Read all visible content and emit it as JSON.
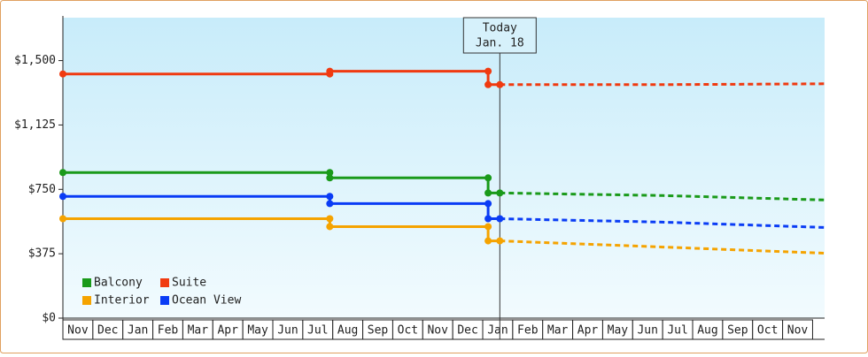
{
  "chart_data": {
    "type": "line",
    "categories": [
      "Nov",
      "Dec",
      "Jan",
      "Feb",
      "Mar",
      "Apr",
      "May",
      "Jun",
      "Jul",
      "Aug",
      "Sep",
      "Oct",
      "Nov",
      "Dec",
      "Jan",
      "Feb",
      "Mar",
      "Apr",
      "May",
      "Jun",
      "Jul",
      "Aug",
      "Sep",
      "Oct",
      "Nov"
    ],
    "xlim": [
      0,
      25.4
    ],
    "ylim": [
      0,
      1750
    ],
    "yticks": [
      {
        "value": 0,
        "label": "$0"
      },
      {
        "value": 375,
        "label": "$375"
      },
      {
        "value": 750,
        "label": "$750"
      },
      {
        "value": 1125,
        "label": "$1,125"
      },
      {
        "value": 1500,
        "label": "$1,500"
      }
    ],
    "x": [
      0,
      8.9,
      8.9,
      14.18,
      14.18,
      14.57
    ],
    "forecast_x": [
      14.57,
      20,
      25.4
    ],
    "series": [
      {
        "name": "Balcony",
        "color": "#1a9a1a",
        "values": [
          848,
          848,
          817,
          817,
          729,
          729
        ],
        "forecast": [
          729,
          714,
          688
        ]
      },
      {
        "name": "Suite",
        "color": "#f03a10",
        "values": [
          1422,
          1422,
          1438,
          1438,
          1360,
          1360
        ],
        "forecast": [
          1360,
          1360,
          1365
        ]
      },
      {
        "name": "Interior",
        "color": "#f5a300",
        "values": [
          579,
          579,
          533,
          533,
          450,
          450
        ],
        "forecast": [
          450,
          414,
          378
        ]
      },
      {
        "name": "Ocean View",
        "color": "#0a3cf5",
        "values": [
          709,
          709,
          667,
          667,
          579,
          579
        ],
        "forecast": [
          579,
          559,
          528
        ]
      }
    ],
    "today": {
      "x": 14.57,
      "label": [
        "Today",
        "Jan. 18"
      ]
    }
  }
}
